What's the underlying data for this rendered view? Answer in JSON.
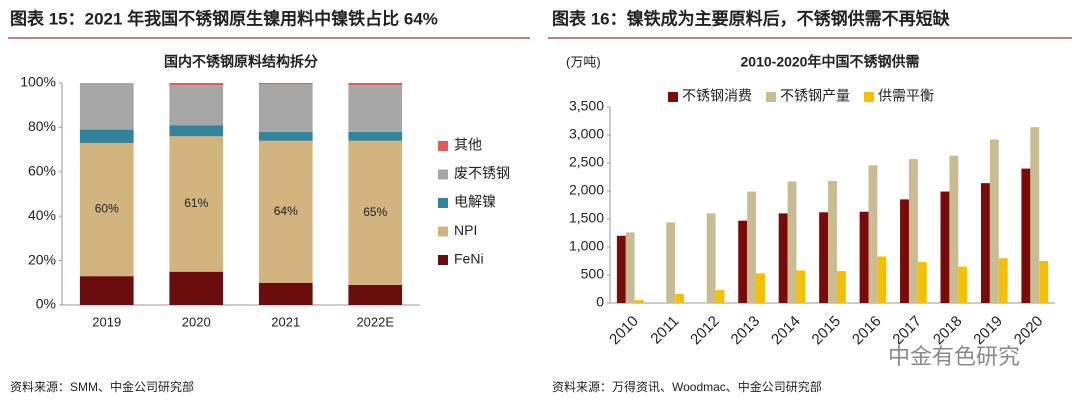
{
  "chart_data": [
    {
      "type": "stacked_bar",
      "heading": "图表 15：2021 年我国不锈钢原生镍用料中镍铁占比 64%",
      "title": "国内不锈钢原料结构拆分",
      "source": "资料来源：SMM、中金公司研究部",
      "categories": [
        "2019",
        "2020",
        "2021",
        "2022E"
      ],
      "series": [
        {
          "name": "FeNi",
          "color": "#6b0d0d",
          "values": [
            13,
            15,
            10,
            9
          ]
        },
        {
          "name": "NPI",
          "color": "#d2b47e",
          "values": [
            60,
            61,
            64,
            65
          ],
          "value_labels": [
            "60%",
            "61%",
            "64%",
            "65%"
          ]
        },
        {
          "name": "电解镍",
          "color": "#31849b",
          "values": [
            6,
            5,
            4,
            4
          ]
        },
        {
          "name": "废不锈钢",
          "color": "#a6a6a6",
          "values": [
            21,
            18,
            21.5,
            21
          ]
        },
        {
          "name": "其他",
          "color": "#e05a5a",
          "values": [
            0,
            1,
            0.5,
            1
          ]
        }
      ],
      "ylim": [
        0,
        100
      ],
      "yticks": [
        {
          "value": 0,
          "label": "0%"
        },
        {
          "value": 20,
          "label": "20%"
        },
        {
          "value": 40,
          "label": "40%"
        },
        {
          "value": 60,
          "label": "60%"
        },
        {
          "value": 80,
          "label": "80%"
        },
        {
          "value": 100,
          "label": "100%"
        }
      ],
      "grid": false,
      "legend": "right"
    },
    {
      "type": "bar",
      "heading": "图表 16：镍铁成为主要原料后，不锈钢供需不再短缺",
      "title": "2010-2020年中国不锈钢供需",
      "y_label": "(万吨)",
      "watermark": "中金有色研究",
      "source": "资料来源：万得资讯、Woodmac、中金公司研究部",
      "categories": [
        "2010",
        "2011",
        "2012",
        "2013",
        "2014",
        "2015",
        "2016",
        "2017",
        "2018",
        "2019",
        "2020"
      ],
      "series": [
        {
          "name": "不锈钢消费",
          "color": "#7b0a0a",
          "values": [
            1200,
            null,
            null,
            1470,
            1600,
            1620,
            1630,
            1850,
            1990,
            2140,
            2400
          ]
        },
        {
          "name": "不锈钢产量",
          "color": "#c9bc92",
          "values": [
            1260,
            1440,
            1600,
            1990,
            2170,
            2180,
            2460,
            2570,
            2630,
            2920,
            3140
          ]
        },
        {
          "name": "供需平衡",
          "color": "#f5c000",
          "values": [
            50,
            160,
            230,
            530,
            580,
            570,
            830,
            730,
            650,
            800,
            750
          ]
        }
      ],
      "ylim": [
        0,
        3500
      ],
      "yticks": [
        0,
        500,
        {
          "value": 1000,
          "label": "1,000"
        },
        {
          "value": 1500,
          "label": "1,500"
        },
        {
          "value": 2000,
          "label": "2,000"
        },
        {
          "value": 2500,
          "label": "2,500"
        },
        {
          "value": 3000,
          "label": "3,000"
        },
        {
          "value": 3500,
          "label": "3,500"
        }
      ],
      "grid": false,
      "legend": "top"
    }
  ]
}
